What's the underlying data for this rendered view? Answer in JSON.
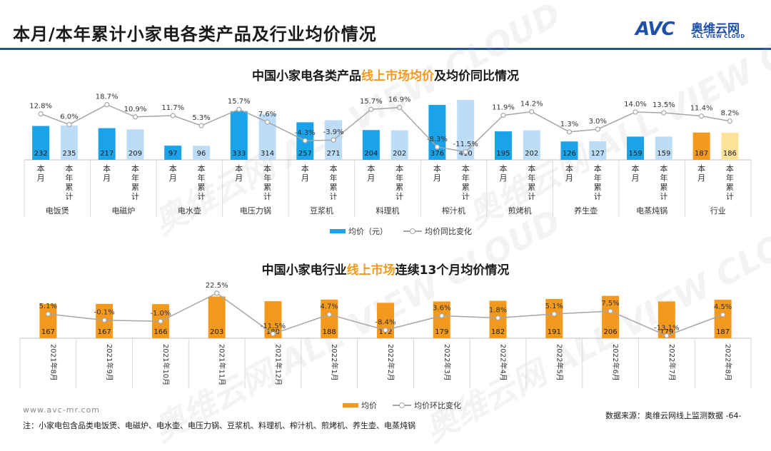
{
  "header": {
    "title": "本月/本年累计小家电各类产品及行业均价情况",
    "logo_mark": "AVC",
    "logo_cn": "奥维云网",
    "logo_en": "ALL VIEW CLOUD"
  },
  "watermark": "奥维云网 ALL VIEW CLOUD",
  "colors": {
    "brand_blue": "#1f4fa8",
    "bar_month": "#1aa3e8",
    "bar_ytd": "#bcdcf7",
    "bar_industry_month": "#f39a1e",
    "bar_industry_ytd": "#fde29a",
    "line": "#a6a6a6",
    "highlight_orange": "#f39a1e"
  },
  "chart1": {
    "title_parts": [
      "中国小家电各类产品",
      "线上市场均价",
      "及均价同比情况"
    ],
    "legend": {
      "bar": "均价（元）",
      "line": "均价同比变化"
    }
  },
  "chart2": {
    "title_parts": [
      "中国小家电行业",
      "线上市场",
      "连续13个月均价情况"
    ],
    "legend": {
      "bar": "均价",
      "line": "均价环比变化"
    }
  },
  "chart_data": [
    {
      "type": "bar",
      "title": "中国小家电各类产品线上市场均价及均价同比情况",
      "categories": [
        "电饭煲",
        "电磁炉",
        "电水壶",
        "电压力锅",
        "豆浆机",
        "料理机",
        "榨汁机",
        "煎烤机",
        "养生壶",
        "电蒸炖锅",
        "行业"
      ],
      "sub_categories": [
        "本月",
        "本年累计"
      ],
      "series": [
        {
          "name": "均价（元）",
          "month": [
            232,
            217,
            97,
            333,
            257,
            204,
            376,
            195,
            126,
            159,
            187
          ],
          "ytd": [
            235,
            209,
            96,
            314,
            271,
            202,
            410,
            202,
            127,
            159,
            186
          ]
        },
        {
          "name": "均价同比变化",
          "type": "line",
          "month": [
            "12.8%",
            "18.7%",
            "11.7%",
            "15.7%",
            "-4.3%",
            "15.7%",
            "-8.3%",
            "11.9%",
            "1.3%",
            "14.0%",
            "11.4%"
          ],
          "ytd": [
            "6.0%",
            "10.9%",
            "5.3%",
            "7.6%",
            "-3.9%",
            "16.9%",
            "-11.5%",
            "14.2%",
            "3.0%",
            "13.5%",
            "8.2%"
          ]
        }
      ]
    },
    {
      "type": "bar",
      "title": "中国小家电行业线上市场连续13个月均价情况",
      "categories": [
        "2021年8月",
        "2021年9月",
        "2021年10月",
        "2021年11月",
        "2021年12月",
        "2022年1月",
        "2022年2月",
        "2022年3月",
        "2022年4月",
        "2022年5月",
        "2022年6月",
        "2022年7月",
        "2022年8月"
      ],
      "series": [
        {
          "name": "均价",
          "values": [
            167,
            167,
            166,
            203,
            180,
            188,
            172,
            179,
            182,
            191,
            206,
            179,
            187
          ]
        },
        {
          "name": "均价环比变化",
          "type": "line",
          "values": [
            "5.1%",
            "-0.1%",
            "-1.0%",
            "22.5%",
            "-11.5%",
            "4.7%",
            "-8.4%",
            "3.6%",
            "1.8%",
            "5.1%",
            "7.5%",
            "-13.1%",
            "4.5%"
          ]
        }
      ]
    }
  ],
  "footer": {
    "site": "www.avc-mr.com",
    "source": "数据来源：奥维云网线上监测数据 -64-",
    "note": "注：小家电包含品类电饭煲、电磁炉、电水壶、电压力锅、豆浆机、料理机、榨汁机、煎烤机、养生壶、电蒸炖锅"
  }
}
